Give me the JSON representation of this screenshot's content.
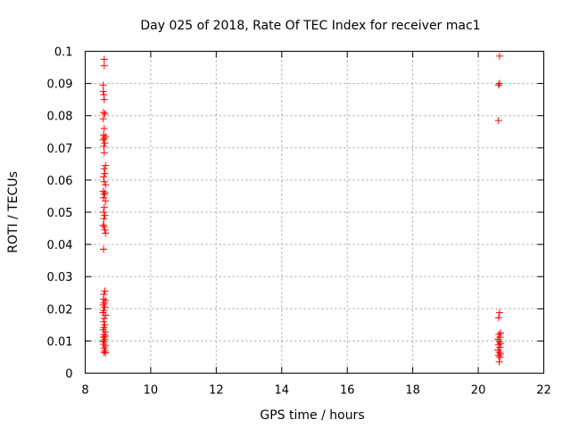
{
  "chart_data": {
    "type": "scatter",
    "title": "Day 025 of 2018, Rate Of TEC Index for receiver mac1",
    "xlabel": "GPS time / hours",
    "ylabel": "ROTI / TECUs",
    "xlim": [
      8,
      22
    ],
    "ylim": [
      0,
      0.1
    ],
    "xticks": [
      8,
      10,
      12,
      14,
      16,
      18,
      20,
      22
    ],
    "yticks": [
      0,
      0.01,
      0.02,
      0.03,
      0.04,
      0.05,
      0.06,
      0.07,
      0.08,
      0.09,
      0.1
    ],
    "grid": true,
    "marker": "plus",
    "color": "#ff0000",
    "series": [
      {
        "points": [
          [
            8.58,
            0.0975
          ],
          [
            8.58,
            0.0955
          ],
          [
            8.55,
            0.0895
          ],
          [
            8.55,
            0.0875
          ],
          [
            8.57,
            0.0865
          ],
          [
            8.58,
            0.085
          ],
          [
            8.56,
            0.081
          ],
          [
            8.6,
            0.0805
          ],
          [
            8.55,
            0.079
          ],
          [
            8.58,
            0.076
          ],
          [
            8.56,
            0.074
          ],
          [
            8.62,
            0.0735
          ],
          [
            8.58,
            0.073
          ],
          [
            8.55,
            0.0725
          ],
          [
            8.6,
            0.0715
          ],
          [
            8.57,
            0.0705
          ],
          [
            8.58,
            0.0685
          ],
          [
            8.62,
            0.0645
          ],
          [
            8.58,
            0.0635
          ],
          [
            8.6,
            0.062
          ],
          [
            8.56,
            0.061
          ],
          [
            8.58,
            0.0595
          ],
          [
            8.62,
            0.0585
          ],
          [
            8.55,
            0.0565
          ],
          [
            8.6,
            0.056
          ],
          [
            8.58,
            0.0555
          ],
          [
            8.56,
            0.0545
          ],
          [
            8.62,
            0.0535
          ],
          [
            8.58,
            0.0515
          ],
          [
            8.56,
            0.05
          ],
          [
            8.6,
            0.049
          ],
          [
            8.57,
            0.048
          ],
          [
            8.55,
            0.046
          ],
          [
            8.58,
            0.0455
          ],
          [
            8.6,
            0.0445
          ],
          [
            8.62,
            0.0435
          ],
          [
            8.56,
            0.0385
          ],
          [
            8.6,
            0.0255
          ],
          [
            8.57,
            0.0245
          ],
          [
            8.56,
            0.023
          ],
          [
            8.62,
            0.0225
          ],
          [
            8.58,
            0.0218
          ],
          [
            8.55,
            0.0212
          ],
          [
            8.6,
            0.0205
          ],
          [
            8.57,
            0.0195
          ],
          [
            8.54,
            0.0188
          ],
          [
            8.62,
            0.018
          ],
          [
            8.58,
            0.017
          ],
          [
            8.56,
            0.016
          ],
          [
            8.6,
            0.015
          ],
          [
            8.57,
            0.0142
          ],
          [
            8.55,
            0.0135
          ],
          [
            8.62,
            0.0128
          ],
          [
            8.58,
            0.012
          ],
          [
            8.56,
            0.0112
          ],
          [
            8.6,
            0.0105
          ],
          [
            8.57,
            0.0098
          ],
          [
            8.55,
            0.009
          ],
          [
            8.62,
            0.0085
          ],
          [
            8.58,
            0.0078
          ],
          [
            8.6,
            0.007
          ],
          [
            8.57,
            0.0065
          ],
          [
            8.62,
            0.0063
          ],
          [
            8.55,
            0.01
          ],
          [
            8.61,
            0.0115
          ]
        ]
      },
      {
        "points": [
          [
            20.65,
            0.0985
          ],
          [
            20.65,
            0.09
          ],
          [
            20.62,
            0.0895
          ],
          [
            20.62,
            0.0785
          ],
          [
            20.65,
            0.0188
          ],
          [
            20.62,
            0.0172
          ],
          [
            20.68,
            0.0125
          ],
          [
            20.63,
            0.012
          ],
          [
            20.66,
            0.0112
          ],
          [
            20.6,
            0.0105
          ],
          [
            20.65,
            0.0098
          ],
          [
            20.68,
            0.0092
          ],
          [
            20.62,
            0.0088
          ],
          [
            20.66,
            0.008
          ],
          [
            20.6,
            0.0072
          ],
          [
            20.64,
            0.0065
          ],
          [
            20.68,
            0.006
          ],
          [
            20.62,
            0.0055
          ],
          [
            20.66,
            0.005
          ],
          [
            20.64,
            0.0035
          ]
        ]
      }
    ]
  }
}
